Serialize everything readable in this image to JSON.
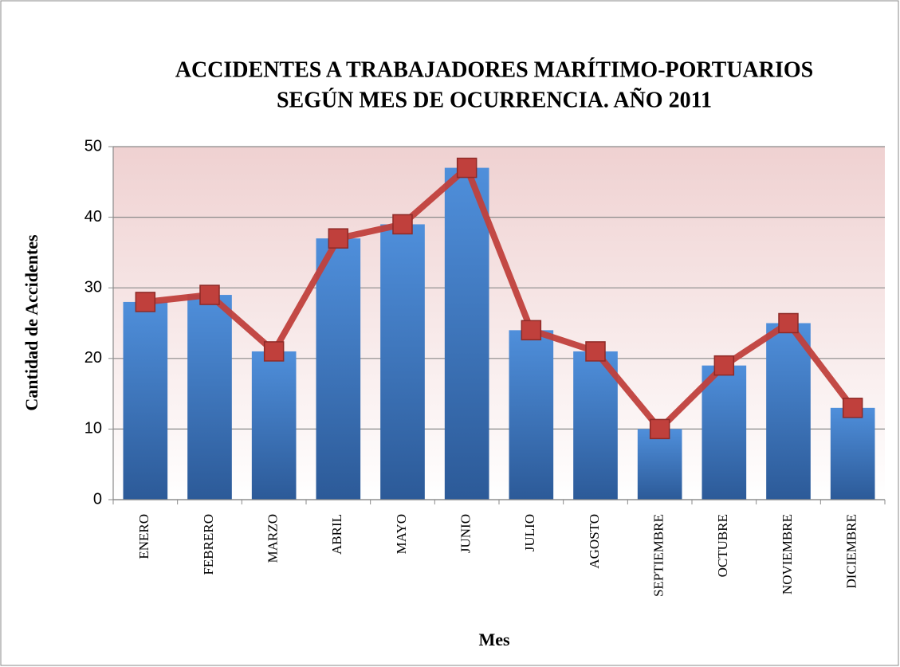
{
  "chart_data": {
    "type": "bar",
    "title": [
      "ACCIDENTES A TRABAJADORES MARÍTIMO-PORTUARIOS",
      "SEGÚN MES DE OCURRENCIA. AÑO 2011"
    ],
    "x_label": "Mes",
    "y_label": "Cantidad de Accidentes",
    "categories": [
      "ENERO",
      "FEBRERO",
      "MARZO",
      "ABRIL",
      "MAYO",
      "JUNIO",
      "JULIO",
      "AGOSTO",
      "SEPTIEMBRE",
      "OCTUBRE",
      "NOVIEMBRE",
      "DICIEMBRE"
    ],
    "values": [
      28,
      29,
      21,
      37,
      39,
      47,
      24,
      21,
      10,
      19,
      25,
      13
    ],
    "color": "#3f7ac6",
    "line_overlay": true,
    "line_color": "#c0403c",
    "ylim": [
      0,
      50
    ],
    "yticks": [
      0,
      10,
      20,
      30,
      40,
      50
    ],
    "grid": true
  }
}
